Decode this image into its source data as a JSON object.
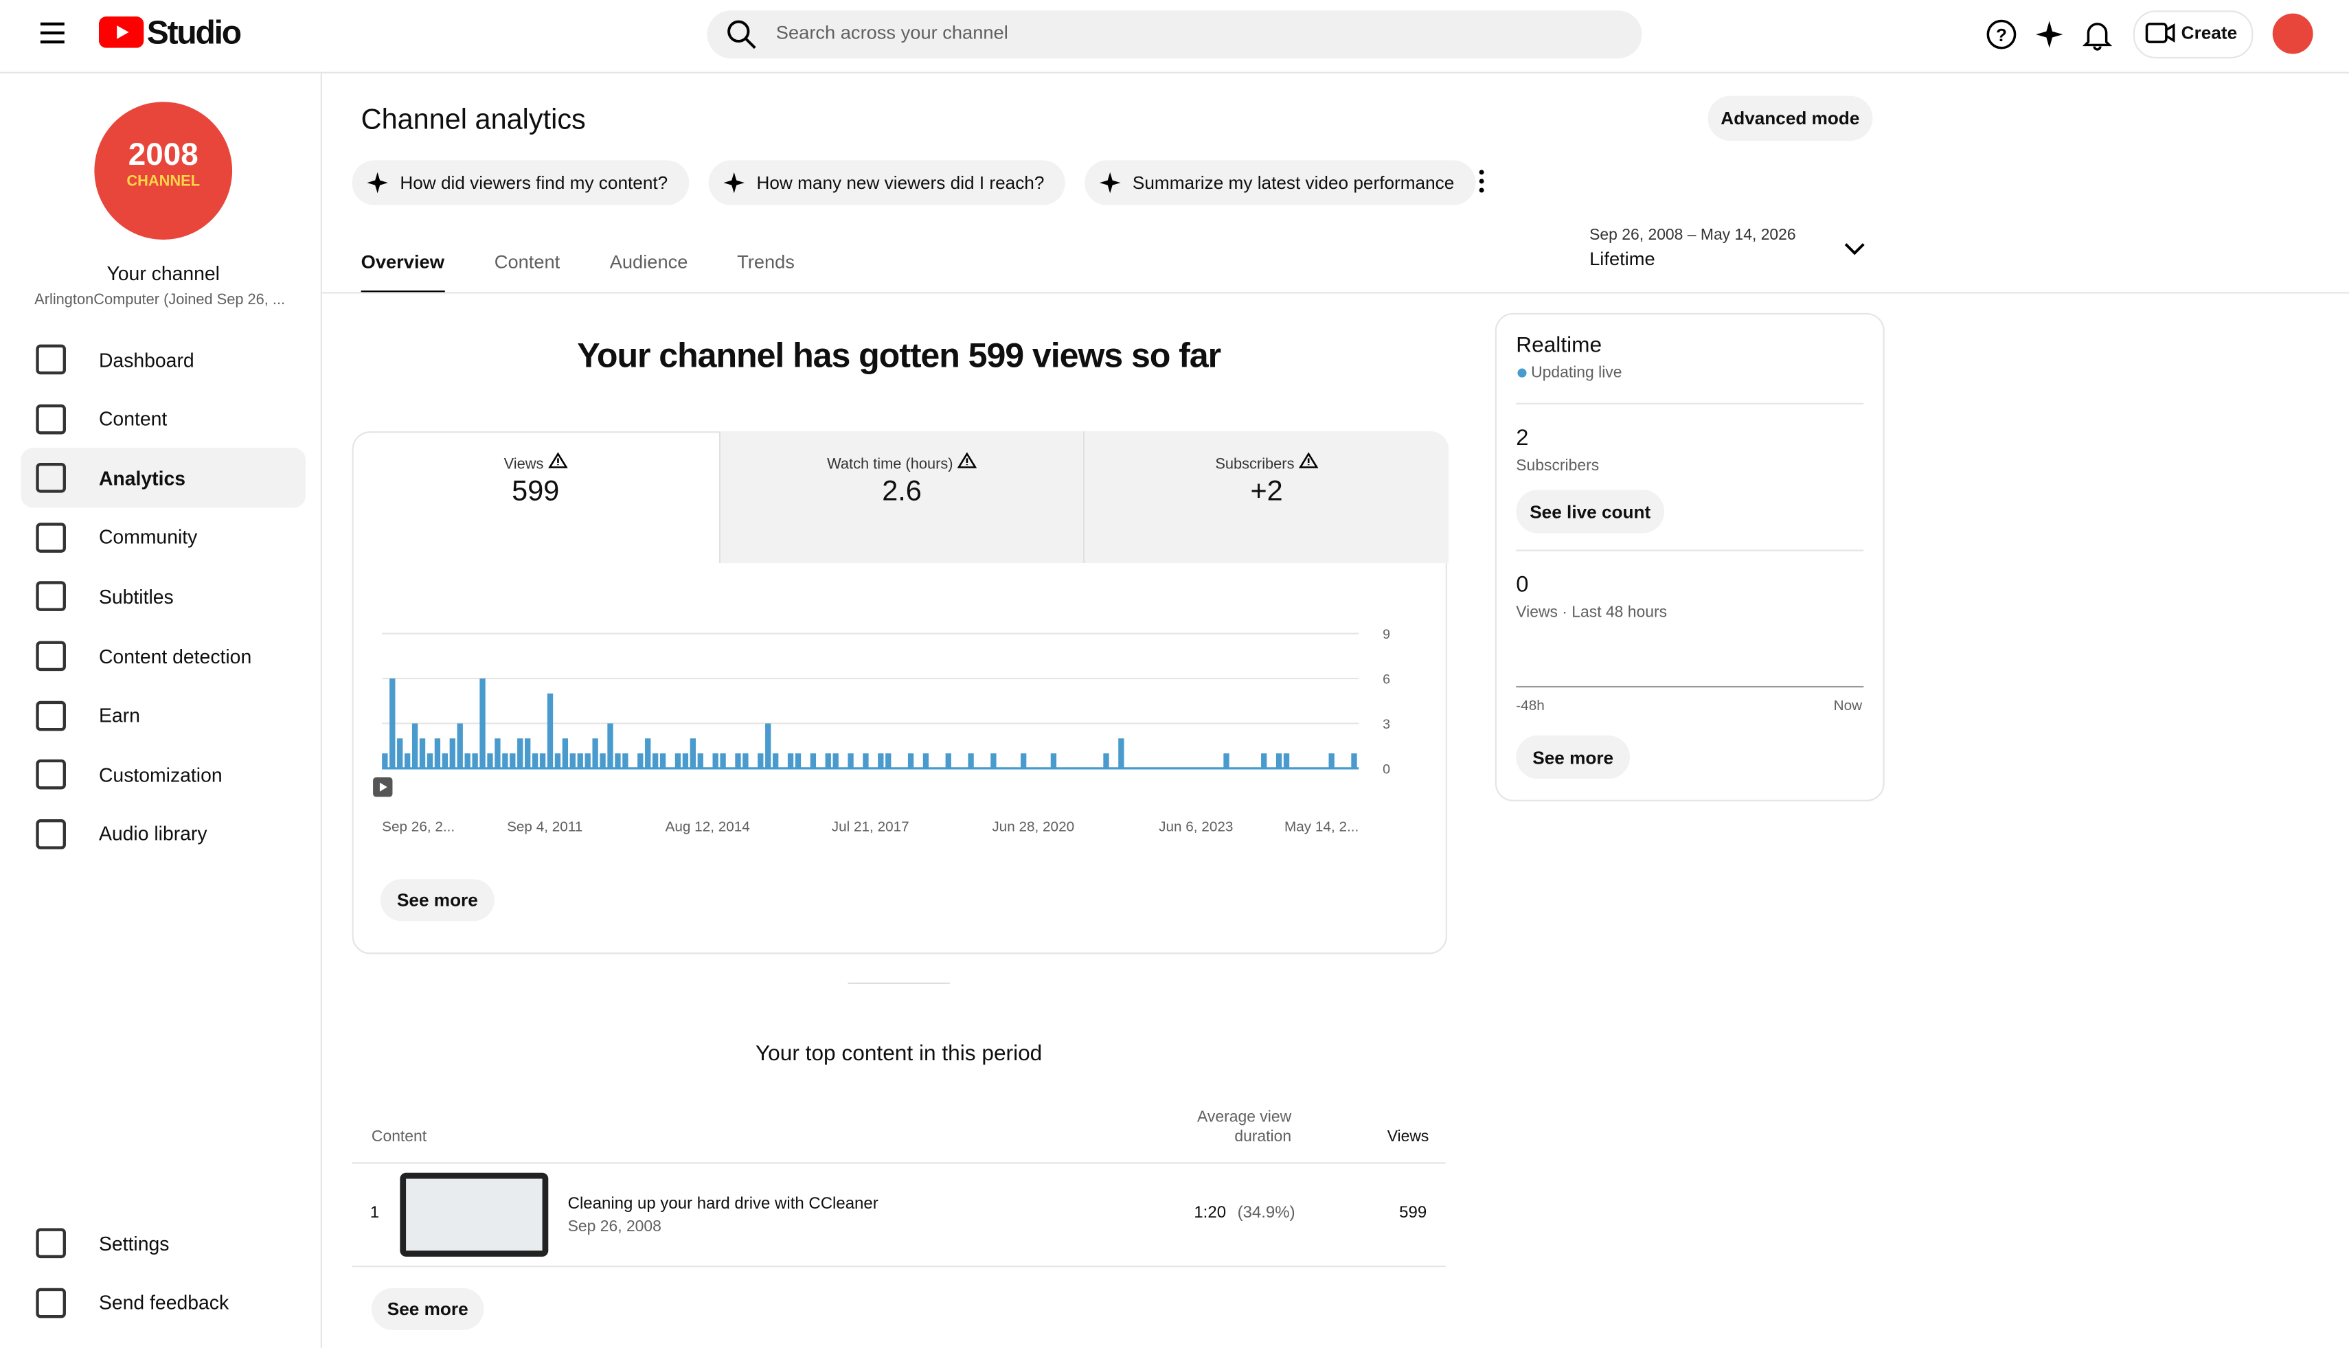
{
  "header": {
    "logo_text": "Studio",
    "search_placeholder": "Search across your channel",
    "create": "Create"
  },
  "sidebar": {
    "avatar_line1": "2008",
    "avatar_line2": "CHANNEL",
    "channel_name": "Your channel",
    "channel_sub": "ArlingtonComputer (Joined Sep 26, ...",
    "nav": [
      "Dashboard",
      "Content",
      "Analytics",
      "Community",
      "Subtitles",
      "Content detection",
      "Earn",
      "Customization",
      "Audio library"
    ],
    "footer_nav": [
      "Settings",
      "Send feedback"
    ]
  },
  "main": {
    "title": "Channel analytics",
    "advanced_mode": "Advanced mode",
    "chips": [
      "How did viewers find my content?",
      "How many new viewers did I reach?",
      "Summarize my latest video performance"
    ],
    "tabs": [
      "Overview",
      "Content",
      "Audience",
      "Trends"
    ],
    "date_range": "Sep 26, 2008 – May 14, 2026",
    "period": "Lifetime"
  },
  "summary": {
    "headline": "Your channel has gotten 599 views so far",
    "metrics": [
      {
        "label": "Views",
        "value": "599"
      },
      {
        "label": "Watch time (hours)",
        "value": "2.6"
      },
      {
        "label": "Subscribers",
        "value": "+2"
      }
    ],
    "see_more": "See more"
  },
  "chart_data": {
    "type": "bar",
    "color": "#4a9bcd",
    "ylim": [
      0,
      9
    ],
    "yticks": [
      0,
      3,
      6,
      9
    ],
    "xtick_labels": [
      "Sep 26, 2...",
      "Sep 4, 2011",
      "Aug 12, 2014",
      "Jul 21, 2017",
      "Jun 28, 2020",
      "Jun 6, 2023",
      "May 14, 2..."
    ],
    "values": [
      1,
      6,
      2,
      1,
      3,
      2,
      1,
      2,
      1,
      2,
      3,
      1,
      1,
      6,
      1,
      2,
      1,
      1,
      2,
      2,
      1,
      1,
      5,
      1,
      2,
      1,
      1,
      1,
      2,
      1,
      3,
      1,
      1,
      0,
      1,
      2,
      1,
      1,
      0,
      1,
      1,
      2,
      1,
      0,
      1,
      1,
      0,
      1,
      1,
      0,
      1,
      3,
      1,
      0,
      1,
      1,
      0,
      1,
      0,
      1,
      1,
      0,
      1,
      0,
      1,
      0,
      1,
      1,
      0,
      0,
      1,
      0,
      1,
      0,
      0,
      1,
      0,
      0,
      1,
      0,
      0,
      1,
      0,
      0,
      0,
      1,
      0,
      0,
      0,
      1,
      0,
      0,
      0,
      0,
      0,
      0,
      1,
      0,
      2,
      0,
      0,
      0,
      0,
      0,
      0,
      0,
      0,
      0,
      0,
      0,
      0,
      0,
      1,
      0,
      0,
      0,
      0,
      1,
      0,
      1,
      1,
      0,
      0,
      0,
      0,
      0,
      1,
      0,
      0,
      1
    ]
  },
  "realtime": {
    "title": "Realtime",
    "status": "Updating live",
    "subscribers": 2,
    "subscribers_label": "Subscribers",
    "live_count": "See live count",
    "views": 0,
    "views_label": "Views · Last 48 hours",
    "axis_start": "-48h",
    "axis_end": "Now",
    "see_more": "See more"
  },
  "top_content": {
    "title": "Your top content in this period",
    "col_content": "Content",
    "col_avg": "Average view duration",
    "col_views": "Views",
    "rows": [
      {
        "rank": 1,
        "title": "Cleaning up your hard drive with CCleaner",
        "date": "Sep 26, 2008",
        "avg_duration": "1:20",
        "avg_pct": "(34.9%)",
        "views": 599
      }
    ],
    "see_more": "See more"
  }
}
